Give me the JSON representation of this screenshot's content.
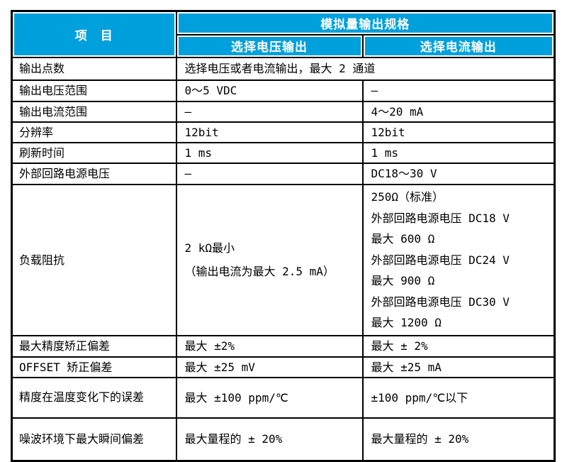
{
  "colors": {
    "header_bg": "#00A0DC",
    "header_text": "#FFFFFF",
    "border": "#000000",
    "body_text": "#000000",
    "page_bg": "#FFFFFF"
  },
  "table": {
    "header": {
      "item_label": "项　目",
      "group_label": "模拟量输出规格",
      "col_voltage": "选择电压输出",
      "col_current": "选择电流输出"
    },
    "rows": [
      {
        "label": "输出点数",
        "span": "选择电压或者电流输出，最大 2 通道"
      },
      {
        "label": "输出电压范围",
        "voltage": "0～5 VDC",
        "current": "—"
      },
      {
        "label": "输出电流范围",
        "voltage": "—",
        "current": "4～20 mA"
      },
      {
        "label": "分辨率",
        "voltage": "12bit",
        "current": "12bit"
      },
      {
        "label": "刷新时间",
        "voltage": "1 ms",
        "current": "1 ms"
      },
      {
        "label": "外部回路电源电压",
        "voltage": "—",
        "current": "DC18～30 V"
      },
      {
        "label": "负载阻抗",
        "voltage": "2 kΩ最小\n（输出电流为最大 2.5 mA）",
        "current": "250Ω（标准）\n外部回路电源电压 DC18 V\n最大  600  Ω\n外部回路电源电压 DC24 V\n最大  900  Ω\n外部回路电源电压 DC30 V\n最大 1200  Ω"
      },
      {
        "label": "最大精度矫正偏差",
        "voltage": "最大 ±2%",
        "current": "最大 ±  2%"
      },
      {
        "label": "OFFSET 矫正偏差",
        "voltage": "最大 ±25 mV",
        "current": "最大 ±25 mA"
      },
      {
        "label": "精度在温度变化下的误差",
        "voltage": "最大 ±100 ppm/℃",
        "current": "±100 ppm/℃以下"
      },
      {
        "label": "噪波环境下最大瞬间偏差",
        "voltage": "最大量程的 ± 20%",
        "current": "最大量程的 ± 20%"
      }
    ]
  }
}
